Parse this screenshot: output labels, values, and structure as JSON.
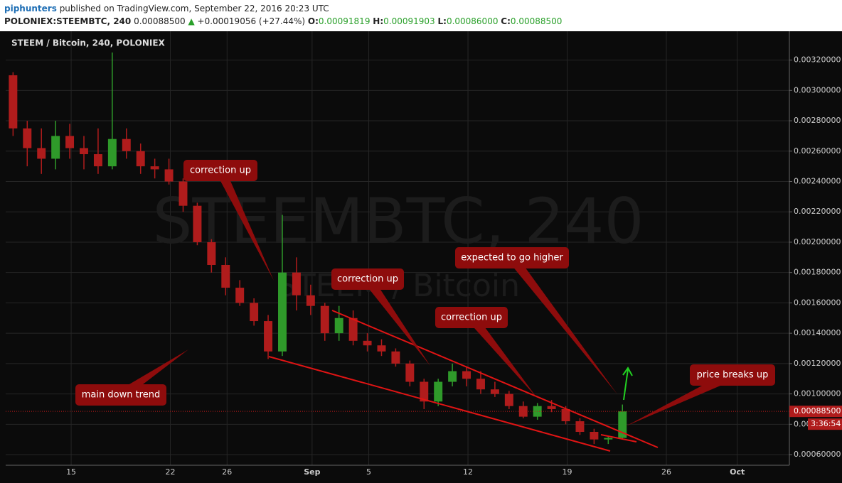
{
  "header": {
    "author": "piphunters",
    "published": "published on TradingView.com, September 22, 2016 20:23 UTC",
    "symbol": "POLONIEX:STEEMBTC, 240",
    "price": "0.00088500",
    "change": "+0.00019056 (+27.44%)",
    "ohlc": [
      {
        "label": "O:",
        "value": "0.00091819"
      },
      {
        "label": "H:",
        "value": "0.00091903"
      },
      {
        "label": "L:",
        "value": "0.00086000"
      },
      {
        "label": "C:",
        "value": "0.00088500"
      }
    ]
  },
  "chart_data": {
    "type": "candlestick",
    "title": "STEEM / Bitcoin, 240, POLONIEX",
    "watermark": "STEEMBTC, 240",
    "watermark_sub": "STEEM / Bitcoin",
    "up_color": "#2f9a2a",
    "down_color": "#b01c1c",
    "grid": true,
    "x": [
      10.9,
      11.9,
      12.9,
      13.9,
      14.9,
      15.9,
      16.9,
      17.9,
      18.9,
      19.9,
      20.9,
      21.9,
      22.9,
      23.9,
      24.9,
      25.9,
      26.9,
      27.9,
      28.9,
      29.9,
      30.9,
      31.9,
      32.9,
      33.9,
      34.9,
      35.9,
      36.9,
      37.9,
      38.9,
      39.9,
      40.9,
      41.9,
      42.9,
      43.9,
      44.9,
      45.9,
      46.9,
      47.9,
      48.9,
      49.9,
      50.9,
      51.9,
      52.9,
      53.9
    ],
    "open": [
      0.0031,
      0.00275,
      0.00262,
      0.00255,
      0.0027,
      0.00262,
      0.00258,
      0.0025,
      0.00268,
      0.0026,
      0.0025,
      0.00248,
      0.0024,
      0.00224,
      0.002,
      0.00185,
      0.0017,
      0.0016,
      0.00148,
      0.00128,
      0.0018,
      0.00165,
      0.00158,
      0.0014,
      0.0015,
      0.00135,
      0.00132,
      0.00128,
      0.0012,
      0.00108,
      0.00095,
      0.00108,
      0.00115,
      0.0011,
      0.00103,
      0.001,
      0.00092,
      0.00085,
      0.00092,
      0.0009,
      0.00082,
      0.00075,
      0.0007,
      0.00071
    ],
    "high": [
      0.00312,
      0.0028,
      0.00275,
      0.0028,
      0.00278,
      0.0027,
      0.00275,
      0.00325,
      0.00275,
      0.00265,
      0.00255,
      0.00255,
      0.00242,
      0.00226,
      0.00202,
      0.0019,
      0.00175,
      0.00163,
      0.00152,
      0.00218,
      0.0019,
      0.00172,
      0.0016,
      0.00158,
      0.00155,
      0.0014,
      0.00136,
      0.0013,
      0.00122,
      0.0011,
      0.0011,
      0.0012,
      0.00118,
      0.00115,
      0.00108,
      0.00102,
      0.00095,
      0.00094,
      0.00096,
      0.00092,
      0.00084,
      0.00077,
      0.00072,
      0.00093
    ],
    "low": [
      0.0027,
      0.0025,
      0.00245,
      0.00248,
      0.00255,
      0.00248,
      0.00245,
      0.00248,
      0.00255,
      0.00245,
      0.00242,
      0.00238,
      0.0022,
      0.00198,
      0.0018,
      0.00165,
      0.00158,
      0.00145,
      0.00123,
      0.00125,
      0.00155,
      0.00152,
      0.00135,
      0.00135,
      0.00132,
      0.00128,
      0.00125,
      0.00118,
      0.00105,
      0.0009,
      0.00092,
      0.00105,
      0.00105,
      0.001,
      0.00098,
      0.0009,
      0.00084,
      0.00083,
      0.00088,
      0.0008,
      0.00073,
      0.00067,
      0.00067,
      0.0007
    ],
    "close": [
      0.00275,
      0.00262,
      0.00255,
      0.0027,
      0.00262,
      0.00258,
      0.0025,
      0.00268,
      0.0026,
      0.0025,
      0.00248,
      0.0024,
      0.00224,
      0.002,
      0.00185,
      0.0017,
      0.0016,
      0.00148,
      0.00128,
      0.0018,
      0.00165,
      0.00158,
      0.0014,
      0.0015,
      0.00135,
      0.00132,
      0.00128,
      0.0012,
      0.00108,
      0.00095,
      0.00108,
      0.00115,
      0.0011,
      0.00103,
      0.001,
      0.00092,
      0.00085,
      0.00092,
      0.0009,
      0.00082,
      0.00075,
      0.0007,
      0.00071,
      0.000885
    ],
    "xlim": [
      10.38,
      65.68
    ],
    "xticks": [
      15,
      22,
      26,
      {
        "value": 32,
        "label": "Sep"
      },
      {
        "value": 36,
        "label": "5"
      },
      {
        "value": 43,
        "label": "12"
      },
      {
        "value": 50,
        "label": "19"
      },
      {
        "value": 57,
        "label": "26"
      },
      {
        "value": 62,
        "label": "Oct"
      }
    ],
    "ylim": [
      0.00053,
      0.00339
    ],
    "yticks": [
      {
        "value": 0.0006,
        "label": "0.00060000"
      },
      {
        "value": 0.0008,
        "label": "0.00080000"
      },
      {
        "value": 0.001,
        "label": "0.00100000"
      },
      {
        "value": 0.0012,
        "label": "0.00120000"
      },
      {
        "value": 0.0014,
        "label": "0.00140000"
      },
      {
        "value": 0.0016,
        "label": "0.00160000"
      },
      {
        "value": 0.0018,
        "label": "0.00180000"
      },
      {
        "value": 0.002,
        "label": "0.00200000"
      },
      {
        "value": 0.0022,
        "label": "0.00220000"
      },
      {
        "value": 0.0024,
        "label": "0.00240000"
      },
      {
        "value": 0.0026,
        "label": "0.00260000"
      },
      {
        "value": 0.0028,
        "label": "0.00280000"
      },
      {
        "value": 0.003,
        "label": "0.00300000"
      },
      {
        "value": 0.0032,
        "label": "0.00320000"
      }
    ],
    "last_price": {
      "value": 0.000885,
      "label": "0.00088500"
    },
    "countdown": "3:36:54",
    "annotations": [
      "correction up",
      "correction up",
      "correction up",
      "expected to go higher",
      "main down trend",
      "price breaks up"
    ]
  }
}
